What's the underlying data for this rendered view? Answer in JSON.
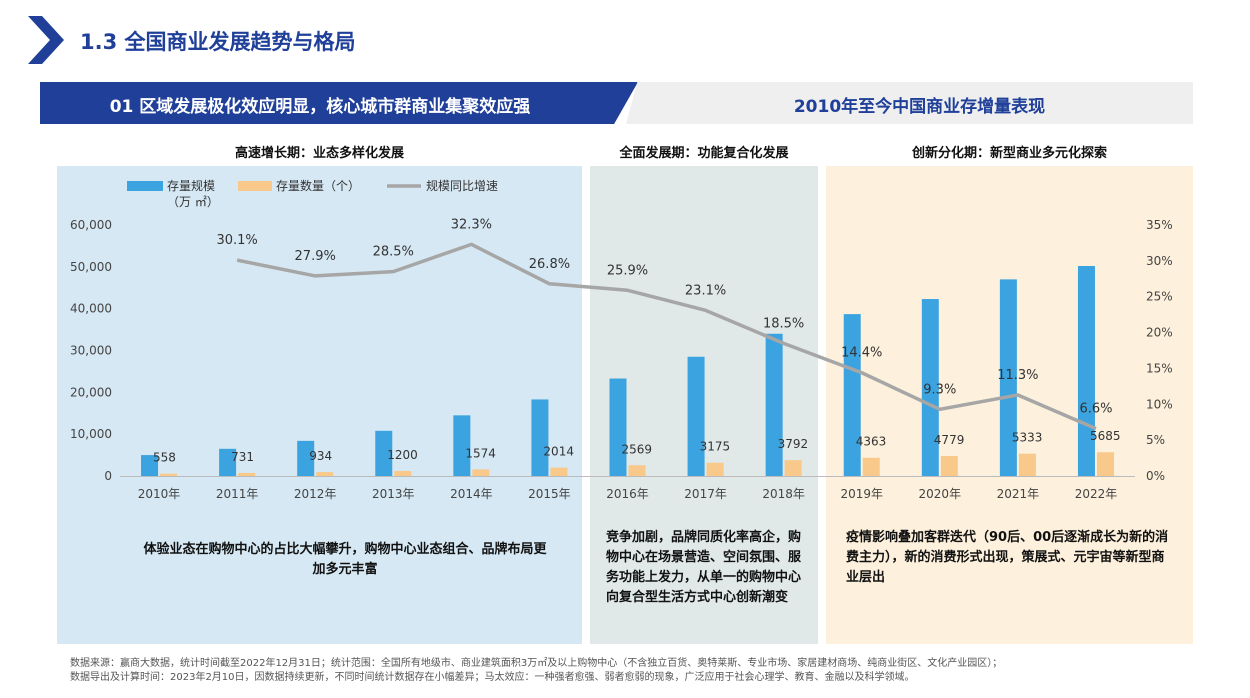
{
  "header": {
    "title": "1.3 全国商业发展趋势与格局"
  },
  "banner": {
    "left": "01 区域发展极化效应明显，核心城市群商业集聚效应强",
    "right": "2010年至今中国商业存增量表现"
  },
  "periods": [
    {
      "label": "高速增长期：业态多样化发展",
      "note": "体验业态在购物中心的占比大幅攀升，购物中心业态组合、品牌布局更加多元丰富"
    },
    {
      "label": "全面发展期：功能复合化发展",
      "note": "竞争加剧，品牌同质化率高企，购物中心在场景营造、空间氛围、服务功能上发力，从单一的购物中心向复合型生活方式中心创新潮变"
    },
    {
      "label": "创新分化期：新型商业多元化探索",
      "note": "疫情影响叠加客群迭代（90后、00后逐渐成长为新的消费主力），新的消费形式出现，策展式、元宇宙等新型商业层出"
    }
  ],
  "chart_data": {
    "type": "bar",
    "categories": [
      "2010年",
      "2011年",
      "2012年",
      "2013年",
      "2014年",
      "2015年",
      "2016年",
      "2017年",
      "2018年",
      "2019年",
      "2020年",
      "2021年",
      "2022年"
    ],
    "series": [
      {
        "name": "存量规模（万㎡）",
        "type": "bar",
        "axis": "left",
        "color": "#3ba3e0",
        "values": [
          5000,
          6500,
          8400,
          10800,
          14500,
          18300,
          23300,
          28500,
          34000,
          38700,
          42300,
          47000,
          50200
        ]
      },
      {
        "name": "存量数量（个）",
        "type": "bar",
        "axis": "left",
        "color": "#f8c98a",
        "values": [
          558,
          731,
          934,
          1200,
          1574,
          2014,
          2569,
          3175,
          3792,
          4363,
          4779,
          5333,
          5685
        ]
      },
      {
        "name": "规模同比增速",
        "type": "line",
        "axis": "right",
        "color": "#a6a6a6",
        "values": [
          null,
          30.1,
          27.9,
          28.5,
          32.3,
          26.8,
          25.9,
          23.1,
          18.5,
          14.4,
          9.3,
          11.3,
          6.6
        ]
      }
    ],
    "left_ticks": [
      "0",
      "10,000",
      "20,000",
      "30,000",
      "40,000",
      "50,000",
      "60,000"
    ],
    "right_ticks": [
      "0%",
      "5%",
      "10%",
      "15%",
      "20%",
      "25%",
      "30%",
      "35%"
    ],
    "count_labels": [
      "558",
      "731",
      "934",
      "1200",
      "1574",
      "2014",
      "2569",
      "3175",
      "3792",
      "4363",
      "4779",
      "5333",
      "5685"
    ],
    "rate_labels": [
      "",
      "30.1%",
      "27.9%",
      "28.5%",
      "32.3%",
      "26.8%",
      "25.9%",
      "23.1%",
      "18.5%",
      "14.4%",
      "9.3%",
      "11.3%",
      "6.6%"
    ],
    "ylim_left": [
      0,
      60000
    ],
    "ylim_right": [
      0,
      35
    ],
    "legend_position": "top-left",
    "legend": {
      "bar1": "存量规模",
      "bar1_unit": "（万 ㎡）",
      "bar2": "存量数量（个）",
      "line": "规模同比增速"
    }
  },
  "footer": {
    "line1": "数据来源：赢商大数据，统计时间截至2022年12月31日；统计范围：全国所有地级市、商业建筑面积3万㎡及以上购物中心（不含独立百货、奥特莱斯、专业市场、家居建材商场、纯商业街区、文化产业园区）；",
    "line2": "数据导出及计算时间：2023年2月10日，因数据持续更新，不同时间统计数据存在小幅差异；马太效应：一种强者愈强、弱者愈弱的现象，广泛应用于社会心理学、教育、金融以及科学领域。"
  }
}
